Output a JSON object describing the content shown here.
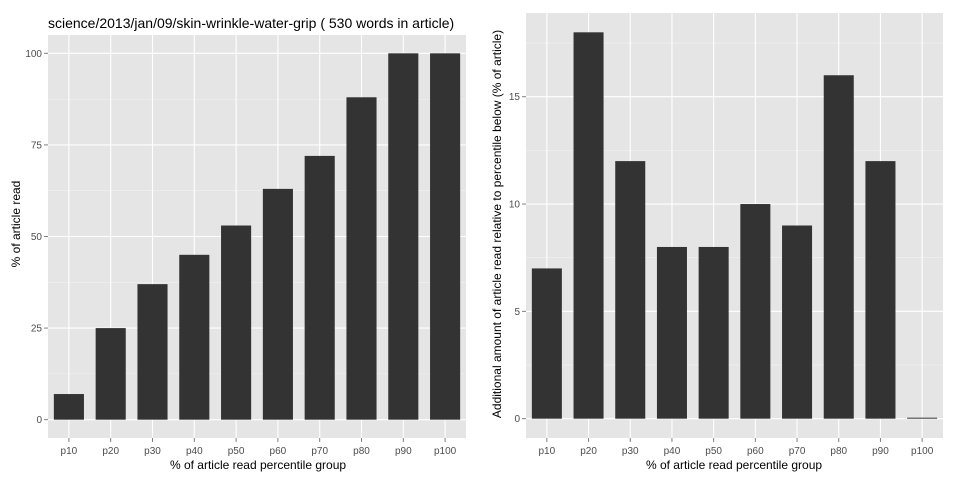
{
  "chart_data": [
    {
      "type": "bar",
      "title": "science/2013/jan/09/skin-wrinkle-water-grip ( 530 words in article)",
      "xlabel": "% of article read percentile group",
      "ylabel": "% of article read",
      "categories": [
        "p10",
        "p20",
        "p30",
        "p40",
        "p50",
        "p60",
        "p70",
        "p80",
        "p90",
        "p100"
      ],
      "values": [
        7,
        25,
        37,
        45,
        53,
        63,
        72,
        88,
        100,
        100
      ],
      "yticks": [
        0,
        25,
        50,
        75,
        100
      ],
      "ylim": [
        -5,
        105
      ],
      "grid": true,
      "colors": {
        "panel": "#e5e5e5",
        "bar": "#333333",
        "grid_major": "#ffffff",
        "grid_minor": "#f2f2f2"
      }
    },
    {
      "type": "bar",
      "title": "",
      "xlabel": "% of article read percentile group",
      "ylabel": "Additional amount of article read relative to percentile below (% of article)",
      "categories": [
        "p10",
        "p20",
        "p30",
        "p40",
        "p50",
        "p60",
        "p70",
        "p80",
        "p90",
        "p100"
      ],
      "values": [
        7,
        18,
        12,
        8,
        8,
        10,
        9,
        16,
        12,
        0
      ],
      "yticks": [
        0,
        5,
        10,
        15
      ],
      "ylim": [
        -0.9,
        18.9
      ],
      "grid": true,
      "colors": {
        "panel": "#e5e5e5",
        "bar": "#333333",
        "grid_major": "#ffffff",
        "grid_minor": "#f2f2f2"
      }
    }
  ]
}
